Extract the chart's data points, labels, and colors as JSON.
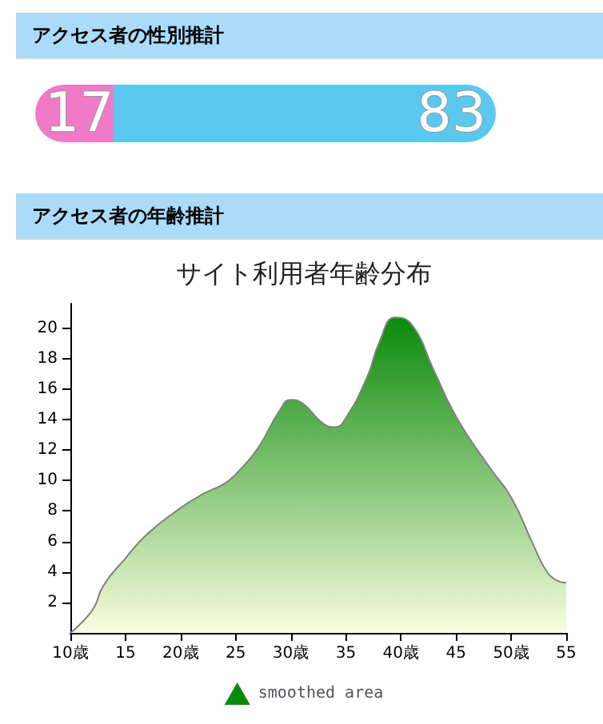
{
  "chart_data": [
    {
      "type": "bar",
      "title": "アクセス者の性別推計",
      "categories": [
        null
      ],
      "orientation": "horizontal",
      "stacked": true,
      "data_labels": true,
      "tick_labels": false,
      "series": [
        {
          "color": "#f07ac8",
          "values": [
            17
          ]
        },
        {
          "color": "#5bc8f0",
          "values": [
            83
          ]
        }
      ]
    },
    {
      "type": "area",
      "title": "アクセス者の年齢推計",
      "subtitle": "サイト利用者年齢分布",
      "legend": "bottom",
      "marker": "none",
      "x": [
        10,
        12,
        13,
        15,
        17,
        20,
        22,
        24,
        25,
        27,
        29,
        30,
        31,
        33,
        34,
        35,
        37,
        38,
        39.5,
        41,
        43,
        45,
        48,
        50,
        52,
        53,
        54,
        55
      ],
      "series": [
        {
          "name": "smoothed area",
          "color": "#0a8a0a",
          "values": [
            0,
            1.5,
            3.1,
            4.9,
            6.5,
            8.2,
            9.1,
            9.8,
            10.4,
            12.1,
            14.6,
            15.3,
            15.1,
            13.7,
            13.5,
            14.1,
            16.9,
            19.0,
            20.7,
            20.2,
            17.2,
            14.2,
            10.9,
            8.9,
            5.8,
            4.3,
            3.5,
            3.3
          ]
        }
      ],
      "xlim": [
        10,
        55
      ],
      "xticks": [
        {
          "value": 10,
          "label": "10歳"
        },
        15,
        {
          "value": 20,
          "label": "20歳"
        },
        25,
        {
          "value": 30,
          "label": "30歳"
        },
        35,
        {
          "value": 40,
          "label": "40歳"
        },
        45,
        {
          "value": 50,
          "label": "50歳"
        },
        55
      ],
      "ylim": [
        0,
        21.6
      ],
      "yticks": [
        2,
        4,
        6,
        8,
        10,
        12,
        14,
        16,
        18,
        20
      ]
    }
  ]
}
